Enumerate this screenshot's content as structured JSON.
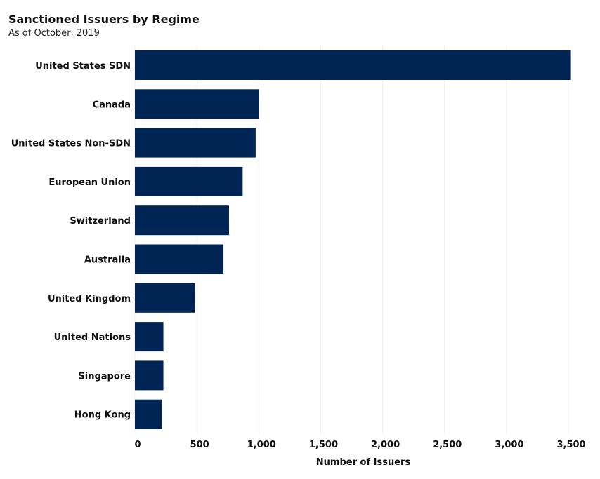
{
  "chart_data": {
    "type": "bar",
    "orientation": "horizontal",
    "title": "Sanctioned Issuers by Regime",
    "subtitle": "As of October, 2019",
    "categories": [
      "United States SDN",
      "Canada",
      "United States Non-SDN",
      "European Union",
      "Switzerland",
      "Australia",
      "United Kingdom",
      "United Nations",
      "Singapore",
      "Hong Kong"
    ],
    "values": [
      3520,
      1000,
      975,
      870,
      760,
      715,
      485,
      230,
      230,
      220
    ],
    "xlabel": "Number of Issuers",
    "ylabel": "",
    "xlim": [
      0,
      3600
    ],
    "xticks": [
      0,
      500,
      1000,
      1500,
      2000,
      2500,
      3000,
      3500
    ],
    "xtick_labels": [
      "0",
      "500",
      "1,000",
      "1,500",
      "2,000",
      "2,500",
      "3,000",
      "3,500"
    ],
    "grid": true,
    "legend": "none",
    "bar_color": "#002554",
    "grid_color": "#eeeeee"
  }
}
